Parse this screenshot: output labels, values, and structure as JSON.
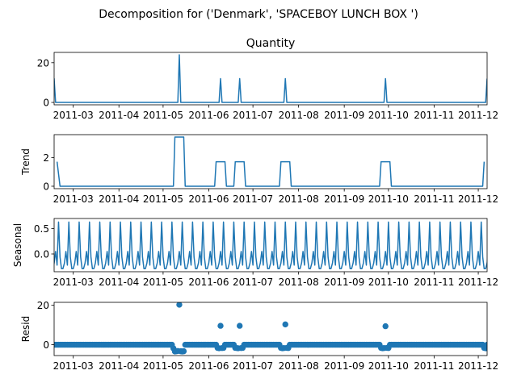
{
  "suptitle": "Decomposition for ('Denmark', 'SPACEBOY LUNCH BOX ')",
  "chart_data": [
    {
      "type": "line",
      "title": "Quantity",
      "ylabel": "",
      "ylim": [
        -1.2,
        25.2
      ],
      "yticks": [
        0,
        20
      ],
      "xlim": [
        "2011-02-16",
        "2011-12-07"
      ],
      "xticks": [
        "2011-03",
        "2011-04",
        "2011-05",
        "2011-06",
        "2011-07",
        "2011-08",
        "2011-09",
        "2011-10",
        "2011-11",
        "2011-12"
      ],
      "color": "#1f77b4",
      "points": [
        [
          "2011-02-16",
          12
        ],
        [
          "2011-02-17",
          0
        ],
        [
          "2011-05-11",
          0
        ],
        [
          "2011-05-12",
          24
        ],
        [
          "2011-05-13",
          0
        ],
        [
          "2011-06-08",
          0
        ],
        [
          "2011-06-09",
          12
        ],
        [
          "2011-06-10",
          0
        ],
        [
          "2011-06-21",
          0
        ],
        [
          "2011-06-22",
          12
        ],
        [
          "2011-06-23",
          0
        ],
        [
          "2011-07-22",
          0
        ],
        [
          "2011-07-23",
          12
        ],
        [
          "2011-07-24",
          0
        ],
        [
          "2011-09-28",
          0
        ],
        [
          "2011-09-29",
          12
        ],
        [
          "2011-09-30",
          0
        ],
        [
          "2011-12-06",
          0
        ],
        [
          "2011-12-07",
          12
        ]
      ]
    },
    {
      "type": "line",
      "title": "",
      "ylabel": "Trend",
      "ylim": [
        -0.17,
        3.6
      ],
      "yticks": [
        0,
        2
      ],
      "xlim": [
        "2011-02-16",
        "2011-12-07"
      ],
      "xticks": [
        "2011-03",
        "2011-04",
        "2011-05",
        "2011-06",
        "2011-07",
        "2011-08",
        "2011-09",
        "2011-10",
        "2011-11",
        "2011-12"
      ],
      "color": "#1f77b4",
      "points": [
        [
          "2011-02-18",
          1.71
        ],
        [
          "2011-02-20",
          0
        ],
        [
          "2011-05-08",
          0
        ],
        [
          "2011-05-09",
          3.43
        ],
        [
          "2011-05-15",
          3.43
        ],
        [
          "2011-05-16",
          0
        ],
        [
          "2011-06-05",
          0
        ],
        [
          "2011-06-06",
          1.71
        ],
        [
          "2011-06-12",
          1.71
        ],
        [
          "2011-06-13",
          0
        ],
        [
          "2011-06-18",
          0
        ],
        [
          "2011-06-19",
          1.71
        ],
        [
          "2011-06-25",
          1.71
        ],
        [
          "2011-06-26",
          0
        ],
        [
          "2011-07-19",
          0
        ],
        [
          "2011-07-20",
          1.71
        ],
        [
          "2011-07-26",
          1.71
        ],
        [
          "2011-07-27",
          0
        ],
        [
          "2011-09-25",
          0
        ],
        [
          "2011-09-26",
          1.71
        ],
        [
          "2011-10-02",
          1.71
        ],
        [
          "2011-10-03",
          0
        ],
        [
          "2011-12-04",
          0
        ],
        [
          "2011-12-05",
          1.71
        ]
      ]
    },
    {
      "type": "line",
      "title": "",
      "ylabel": "Seasonal",
      "ylim": [
        -0.35,
        0.7
      ],
      "yticks": [
        0.0,
        0.5
      ],
      "xlim": [
        "2011-02-16",
        "2011-12-07"
      ],
      "xticks": [
        "2011-03",
        "2011-04",
        "2011-05",
        "2011-06",
        "2011-07",
        "2011-08",
        "2011-09",
        "2011-10",
        "2011-11",
        "2011-12"
      ],
      "color": "#1f77b4",
      "period_days": 7,
      "weekly_pattern": [
        -0.29,
        -0.18,
        0.05,
        -0.22,
        0.63,
        -0.06,
        -0.29
      ]
    },
    {
      "type": "scatter",
      "title": "",
      "ylabel": "Resid",
      "ylim": [
        -5.5,
        21.5
      ],
      "yticks": [
        0,
        20
      ],
      "xlim": [
        "2011-02-16",
        "2011-12-07"
      ],
      "xticks": [
        "2011-03",
        "2011-04",
        "2011-05",
        "2011-06",
        "2011-07",
        "2011-08",
        "2011-09",
        "2011-10",
        "2011-11",
        "2011-12"
      ],
      "color": "#1f77b4",
      "baseline": 0,
      "outliers": [
        [
          "2011-05-12",
          20.3
        ],
        [
          "2011-06-09",
          9.6
        ],
        [
          "2011-06-22",
          9.6
        ],
        [
          "2011-07-23",
          10.3
        ],
        [
          "2011-09-29",
          9.4
        ]
      ],
      "dips": [
        [
          "2011-05-08",
          -1.8
        ],
        [
          "2011-05-09",
          -3.4
        ],
        [
          "2011-05-10",
          -3.3
        ],
        [
          "2011-05-11",
          -3.2
        ],
        [
          "2011-05-13",
          -3.3
        ],
        [
          "2011-05-14",
          -3.4
        ],
        [
          "2011-05-15",
          -3.3
        ],
        [
          "2011-06-07",
          -1.6
        ],
        [
          "2011-06-08",
          -1.8
        ],
        [
          "2011-06-10",
          -1.7
        ],
        [
          "2011-06-11",
          -1.6
        ],
        [
          "2011-06-19",
          -1.6
        ],
        [
          "2011-06-20",
          -1.7
        ],
        [
          "2011-06-21",
          -1.8
        ],
        [
          "2011-06-23",
          -1.7
        ],
        [
          "2011-06-24",
          -1.6
        ],
        [
          "2011-07-20",
          -1.6
        ],
        [
          "2011-07-21",
          -1.8
        ],
        [
          "2011-07-22",
          -1.7
        ],
        [
          "2011-07-24",
          -1.6
        ],
        [
          "2011-07-25",
          -1.7
        ],
        [
          "2011-09-26",
          -1.6
        ],
        [
          "2011-09-27",
          -1.8
        ],
        [
          "2011-09-28",
          -1.7
        ],
        [
          "2011-09-30",
          -1.6
        ],
        [
          "2011-10-01",
          -1.7
        ],
        [
          "2011-12-05",
          -1.6
        ],
        [
          "2011-12-06",
          -1.8
        ]
      ]
    }
  ]
}
